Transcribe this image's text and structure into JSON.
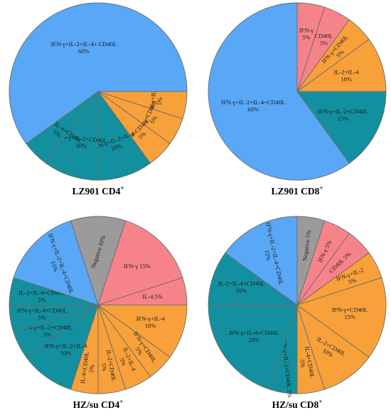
{
  "colors": {
    "blue": "#59a7f7",
    "orange": "#f8a13b",
    "teal": "#13909f",
    "pink": "#f7838a",
    "gray": "#9b9b9b",
    "stroke": "#6b6b6b"
  },
  "chart_data": [
    {
      "type": "pie",
      "title": "LZ901 CD4",
      "title_sup": "+",
      "slices": [
        {
          "label": "IFN-γ+IL-2",
          "value": 5,
          "display": "IFN-γ+IL-2\n5%",
          "color": "orange"
        },
        {
          "label": "IFN-γ+CD40L",
          "value": 5,
          "display": "IFN-γ+CD40L\n5%",
          "color": "orange"
        },
        {
          "label": "IL-4+CD40L",
          "value": 5,
          "display": "IL-4+CD40L\n5%",
          "color": "orange"
        },
        {
          "label": "IFN-γ+IL-2+IL-4",
          "value": 10,
          "display": "IFN-γ+IL-2+IL-4\n10%",
          "color": "teal"
        },
        {
          "label": "IFN-γ+IL-2+CD40L",
          "value": 10,
          "display": "IFN-γ+IL-2+CD40L\n10%",
          "color": "teal"
        },
        {
          "label": "IFN-γ+IL-4+CD40L",
          "value": 5,
          "display": "IFN-γ+IL-4+CD40L\n5%",
          "color": "teal"
        },
        {
          "label": "IFN-γ+IL-2+IL-4+ CD40L",
          "value": 60,
          "display": "IFN-γ+IL-2+IL-4+ CD40L\n60%",
          "color": "blue"
        }
      ]
    },
    {
      "type": "pie",
      "title": "LZ901 CD8",
      "title_sup": "+",
      "slices": [
        {
          "label": "IFN-γ",
          "value": 5,
          "display": "IFN-γ\n5%",
          "color": "pink"
        },
        {
          "label": "CD40L",
          "value": 5,
          "display": "CD40L\n5%",
          "color": "pink"
        },
        {
          "label": "IFN-γ+CD40L",
          "value": 5,
          "display": "IFN-γ+CD40L\n5%",
          "color": "orange"
        },
        {
          "label": "IL-2+IL-4",
          "value": 10,
          "display": "IL-2+IL-4\n10%",
          "color": "orange"
        },
        {
          "label": "IFN-γ+IL-2+CD40L",
          "value": 15,
          "display": "IFN-γ+IL-2+CD40L\n15%",
          "color": "teal"
        },
        {
          "label": "IFN-γ+IL-2+IL-4+CD40L",
          "value": 60,
          "display": "IFN-γ+IL-2+IL-4+CD40L\n60%",
          "color": "blue"
        }
      ]
    },
    {
      "type": "pie",
      "title": "HZ/su  CD4",
      "title_sup": "+",
      "slices": [
        {
          "label": "Negative",
          "value": 10,
          "display": "Negative 10%",
          "color": "gray"
        },
        {
          "label": "IFN-γ",
          "value": 15,
          "display": "IFN-γ  15%",
          "color": "pink"
        },
        {
          "label": "IL-4",
          "value": 5,
          "display": "IL-4  5%",
          "color": "pink"
        },
        {
          "label": "IFN-γ+IL-4",
          "value": 10,
          "display": "IFN-γ+IL-4\n10%",
          "color": "orange"
        },
        {
          "label": "IFN-γ+CD40L",
          "value": 5,
          "display": "IFN-γ+CD40L\n5%",
          "color": "orange"
        },
        {
          "label": "IL-2+IL-4",
          "value": 5,
          "display": "IL-2+IL-4\n5%",
          "color": "orange"
        },
        {
          "label": "IL-2+CD40L",
          "value": 5,
          "display": "IL-2+CD40L\n5%",
          "color": "orange"
        },
        {
          "label": "IL-4+CD40L",
          "value": 5,
          "display": "IL-4+CD40L\n5%",
          "color": "orange"
        },
        {
          "label": "IFN-γ+IL-2+IL-4",
          "value": 10,
          "display": "IFN-γ+IL-2+IL-4\n10%",
          "color": "teal"
        },
        {
          "label": "IFN-γ+IL-2+CD40L",
          "value": 5,
          "display": "IFN-γ+IL-2+CD40L\n5%",
          "color": "teal"
        },
        {
          "label": "IFN-γ+IL-4+CD40L",
          "value": 5,
          "display": "IFN-γ+IL-4+CD40L\n5%",
          "color": "teal"
        },
        {
          "label": "IL-2+IL-4+CD40L",
          "value": 5,
          "display": "IL-2+IL-4+CD40L\n5%",
          "color": "teal"
        },
        {
          "label": "IFN-γ+IL-2+IL-4+CD40L",
          "value": 15,
          "display": "IFN-γ+IL-2+IL-4+CD40L\n15%",
          "color": "blue"
        }
      ]
    },
    {
      "type": "pie",
      "title": "HZ/su  CD8",
      "title_sup": "+",
      "slices": [
        {
          "label": "Negative",
          "value": 5,
          "display": "Negative 5%",
          "color": "gray"
        },
        {
          "label": "IFN-γ",
          "value": 5,
          "display": "IFN-γ  5%",
          "color": "pink"
        },
        {
          "label": "CD40L",
          "value": 5,
          "display": "CD40L  5%",
          "color": "pink"
        },
        {
          "label": "IFN-γ+IL-2",
          "value": 5,
          "display": "IFN-γ+IL-2\n5%",
          "color": "orange"
        },
        {
          "label": "IFN-γ+CD40L",
          "value": 15,
          "display": "IFN-γ+CD40L\n15%",
          "color": "orange"
        },
        {
          "label": "IL-2+CD40L",
          "value": 10,
          "display": "IL-2+CD40L\n10%",
          "color": "orange"
        },
        {
          "label": "IL-4+CD40L",
          "value": 5,
          "display": "IL-4+CD40L\n5%",
          "color": "orange"
        },
        {
          "label": "IFN-γ+IL-2+CD40L",
          "value": 5,
          "display": "IFN-γ+IL-2+CD40L  5%",
          "color": "teal"
        },
        {
          "label": "IFN-γ+IL-4+CD40L",
          "value": 20,
          "display": "IFN-γ+IL-4+CD40L\n20%",
          "color": "teal"
        },
        {
          "label": "IL-2+IL-4+CD40L",
          "value": 10,
          "display": "IL-2+IL-4+CD40L\n10%",
          "color": "teal"
        },
        {
          "label": "IFN-γ+IL-2+IL-4+CD40L",
          "value": 15,
          "display": "IFN-γ+IL-2+IL-4+CD40L\n15%",
          "color": "blue"
        }
      ]
    }
  ]
}
